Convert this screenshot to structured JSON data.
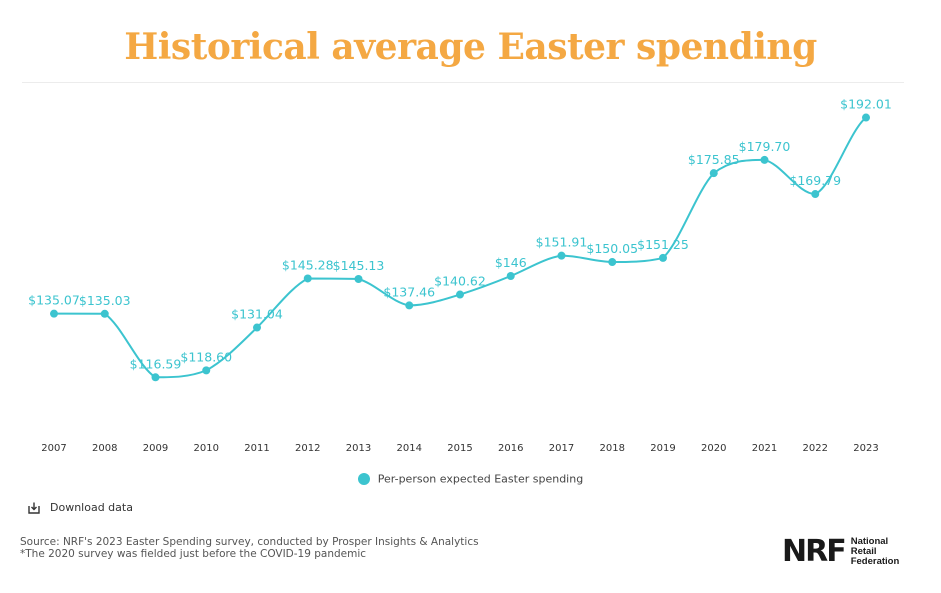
{
  "title": "Historical average Easter spending",
  "chart_data": {
    "type": "line",
    "title": "Historical average Easter spending",
    "xlabel": "",
    "ylabel": "",
    "categories": [
      "2007",
      "2008",
      "2009",
      "2010",
      "2011",
      "2012",
      "2013",
      "2014",
      "2015",
      "2016",
      "2017",
      "2018",
      "2019",
      "2020",
      "2021",
      "2022",
      "2023"
    ],
    "series": [
      {
        "name": "Per-person expected Easter spending",
        "values": [
          135.07,
          135.03,
          116.59,
          118.6,
          131.04,
          145.28,
          145.13,
          137.46,
          140.62,
          146,
          151.91,
          150.05,
          151.25,
          175.85,
          179.7,
          169.79,
          192.01
        ],
        "labels": [
          "$135.07",
          "$135.03",
          "$116.59",
          "$118.60",
          "$131.04",
          "$145.28",
          "$145.13",
          "$137.46",
          "$140.62",
          "$146",
          "$151.91",
          "$150.05",
          "$151.25",
          "$175.85",
          "$179.70",
          "$169.79",
          "$192.01"
        ],
        "color": "#3cc4cf"
      }
    ],
    "ylim": [
      110,
      200
    ],
    "grid": false,
    "legend": "bottom-center"
  },
  "legend": {
    "label": "Per-person expected Easter spending",
    "color": "#3cc4cf"
  },
  "download": {
    "label": "Download data",
    "icon": "download-icon"
  },
  "source": {
    "line1": "Source: NRF's 2023 Easter Spending survey, conducted by Prosper Insights & Analytics",
    "line2": "*The 2020 survey was fielded just before the COVID-19 pandemic"
  },
  "logo": {
    "mark": "NRF",
    "line1": "National",
    "line2": "Retail",
    "line3": "Federation"
  },
  "colors": {
    "title": "#f4a843",
    "series": "#3cc4cf"
  }
}
